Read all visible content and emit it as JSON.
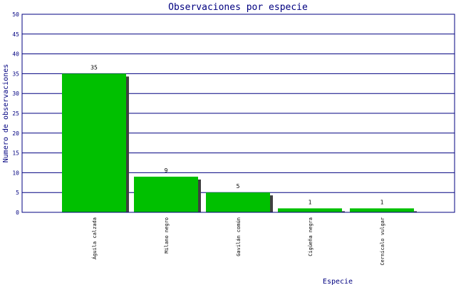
{
  "chart_data": {
    "type": "bar",
    "title": "Observaciones por especie",
    "xlabel": "Especie",
    "ylabel": "Numero de observaciones",
    "categories": [
      "Águila calzada",
      "Milano negro",
      "Gavilán común",
      "Cigüeña negra",
      "Cernícalo vulgar"
    ],
    "values": [
      35,
      9,
      5,
      1,
      1
    ],
    "ylim": [
      0,
      50
    ],
    "yticks": [
      0,
      5,
      10,
      15,
      20,
      25,
      30,
      35,
      40,
      45,
      50
    ],
    "grid": true,
    "colors": {
      "bar": "#00c000",
      "shadow": "#404040",
      "grid": "#000080",
      "text": "#000080"
    }
  }
}
